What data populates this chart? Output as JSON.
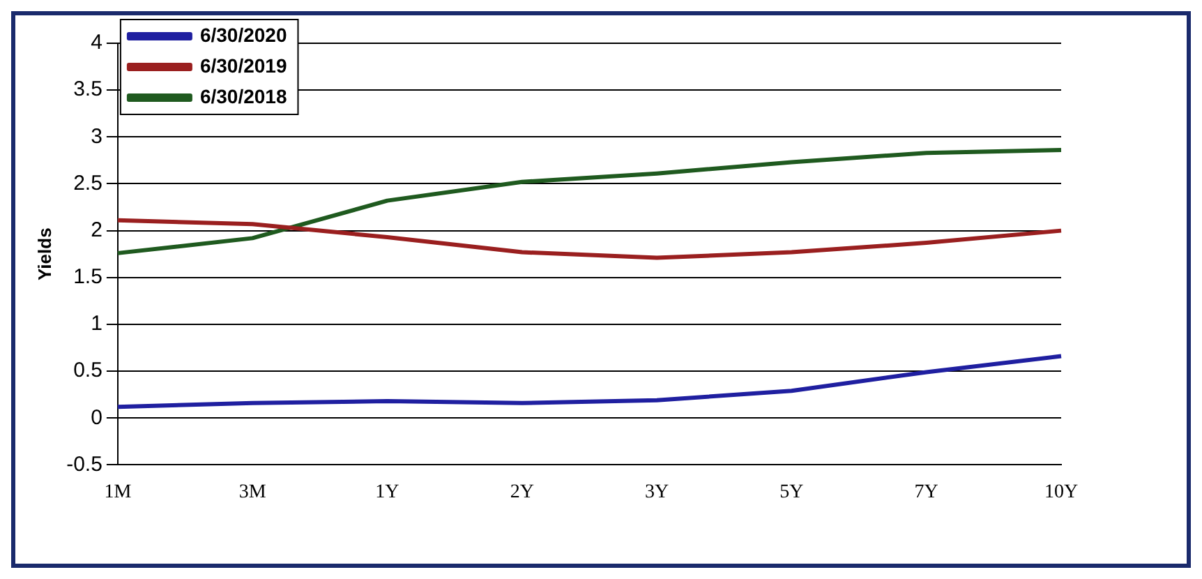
{
  "chart_data": {
    "type": "line",
    "ylabel": "Yields",
    "categories": [
      "1M",
      "3M",
      "1Y",
      "2Y",
      "3Y",
      "5Y",
      "7Y",
      "10Y"
    ],
    "series": [
      {
        "name": "6/30/2020",
        "color": "#1f1fa0",
        "values": [
          0.12,
          0.16,
          0.18,
          0.16,
          0.19,
          0.29,
          0.49,
          0.66
        ]
      },
      {
        "name": "6/30/2019",
        "color": "#9a1f1f",
        "values": [
          2.11,
          2.07,
          1.93,
          1.77,
          1.71,
          1.77,
          1.87,
          2.0
        ]
      },
      {
        "name": "6/30/2018",
        "color": "#1f5a1f",
        "values": [
          1.76,
          1.92,
          2.32,
          2.52,
          2.61,
          2.73,
          2.83,
          2.86
        ]
      }
    ],
    "ylim": [
      -0.5,
      4
    ],
    "yticks": [
      -0.5,
      0,
      0.5,
      1,
      1.5,
      2,
      2.5,
      3,
      3.5,
      4
    ],
    "grid": "y",
    "legend": "top left",
    "marker": "none",
    "line_style": "solid"
  }
}
